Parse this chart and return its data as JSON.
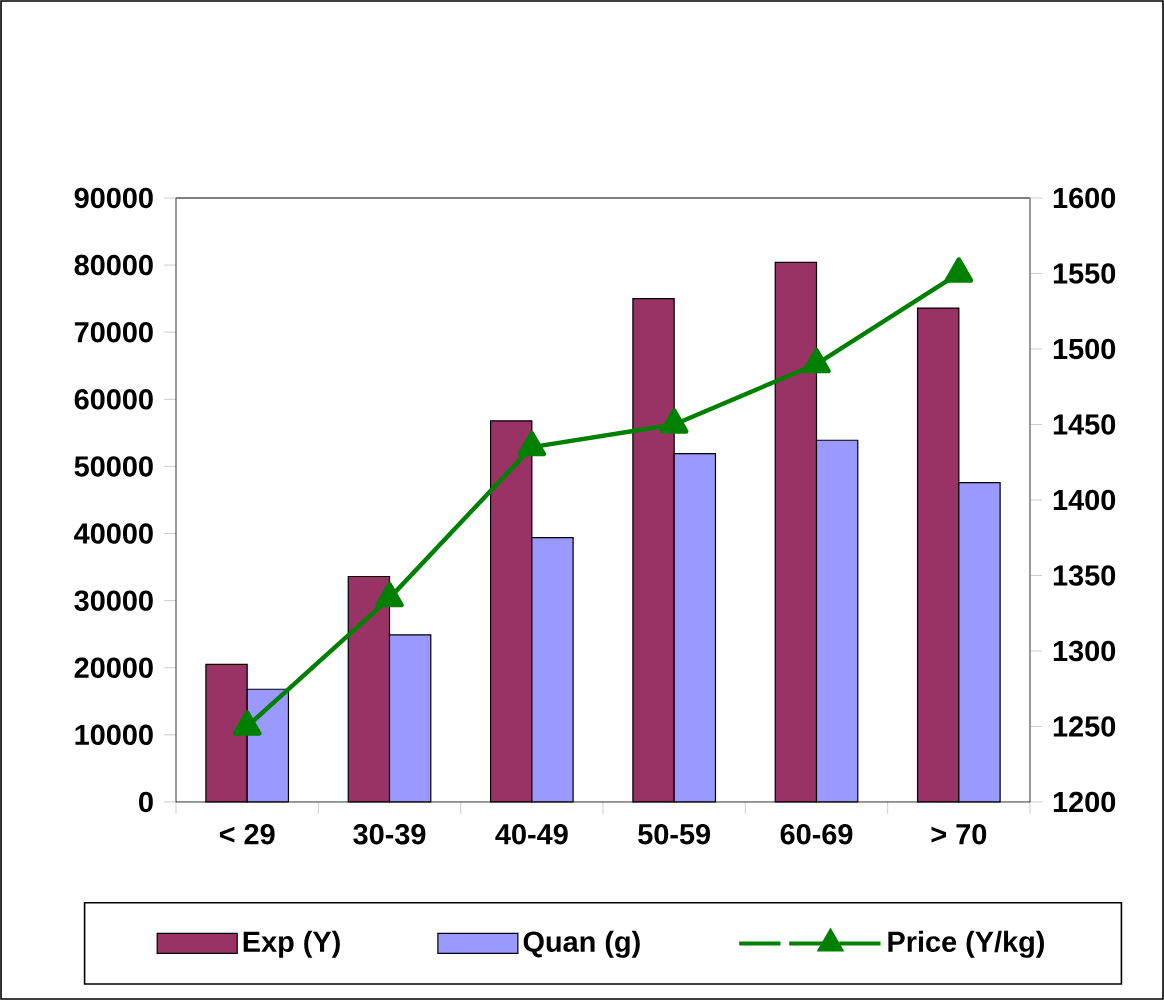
{
  "chart_data": {
    "type": "bar",
    "categories": [
      "< 29",
      "30-39",
      "40-49",
      "50-59",
      "60-69",
      "> 70"
    ],
    "series": [
      {
        "name": "Exp (Y)",
        "color": "#993366",
        "values": [
          20500,
          33600,
          56800,
          75000,
          80400,
          73600
        ]
      },
      {
        "name": "Quan (g)",
        "color": "#9999ff",
        "values": [
          16800,
          24900,
          39400,
          51900,
          53900,
          47600
        ]
      },
      {
        "name": "Price (Y/kg)",
        "type": "line",
        "axis": "y2",
        "color": "#008000",
        "marker": "triangle",
        "line_style": "solid",
        "values": [
          1250,
          1335,
          1435,
          1450,
          1490,
          1550
        ]
      }
    ],
    "ylim": [
      0,
      90000
    ],
    "yticks": [
      0,
      10000,
      20000,
      30000,
      40000,
      50000,
      60000,
      70000,
      80000,
      90000
    ],
    "y2lim": [
      1200,
      1600
    ],
    "y2ticks": [
      1200,
      1250,
      1300,
      1350,
      1400,
      1450,
      1500,
      1550,
      1600
    ],
    "legend": "bottom"
  }
}
